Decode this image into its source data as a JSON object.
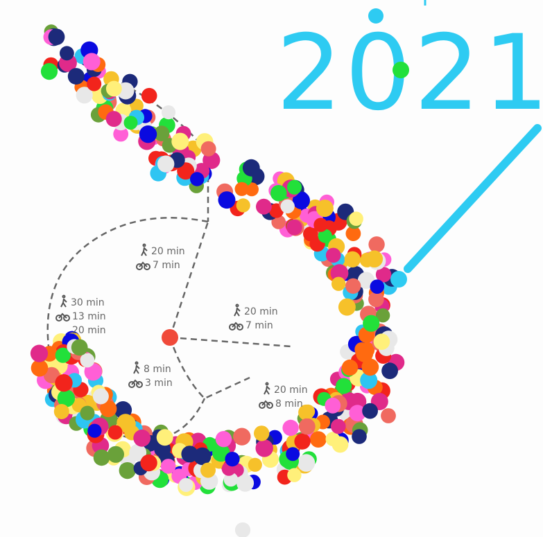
{
  "title": "2021",
  "labels": [
    {
      "walk": "20 min",
      "bike": "7 min"
    },
    {
      "walk": "30 min",
      "bike": "13 min",
      "extra": "20 min"
    },
    {
      "walk": "20 min",
      "bike": "7 min"
    },
    {
      "walk": "8 min",
      "bike": "3 min"
    },
    {
      "walk": "20 min",
      "bike": "8 min"
    }
  ]
}
